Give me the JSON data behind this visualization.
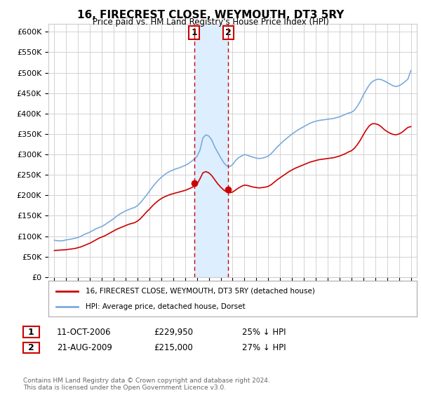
{
  "title": "16, FIRECREST CLOSE, WEYMOUTH, DT3 5RY",
  "subtitle": "Price paid vs. HM Land Registry's House Price Index (HPI)",
  "ylabel_ticks": [
    "£0",
    "£50K",
    "£100K",
    "£150K",
    "£200K",
    "£250K",
    "£300K",
    "£350K",
    "£400K",
    "£450K",
    "£500K",
    "£550K",
    "£600K"
  ],
  "ytick_values": [
    0,
    50000,
    100000,
    150000,
    200000,
    250000,
    300000,
    350000,
    400000,
    450000,
    500000,
    550000,
    600000
  ],
  "ylim": [
    0,
    620000
  ],
  "sale1": {
    "date_num": 2006.78,
    "price": 229950,
    "label": "1",
    "date_str": "11-OCT-2006",
    "pct": "25% ↓ HPI"
  },
  "sale2": {
    "date_num": 2009.64,
    "price": 215000,
    "label": "2",
    "date_str": "21-AUG-2009",
    "pct": "27% ↓ HPI"
  },
  "xlim_start": 1994.5,
  "xlim_end": 2025.5,
  "legend_house": "16, FIRECREST CLOSE, WEYMOUTH, DT3 5RY (detached house)",
  "legend_hpi": "HPI: Average price, detached house, Dorset",
  "footer": "Contains HM Land Registry data © Crown copyright and database right 2024.\nThis data is licensed under the Open Government Licence v3.0.",
  "red_color": "#cc0000",
  "blue_color": "#7aabdc",
  "shade_color": "#ddeeff",
  "background_color": "#ffffff",
  "grid_color": "#cccccc",
  "years_hpi": [
    1995,
    1995.25,
    1995.5,
    1995.75,
    1996,
    1996.25,
    1996.5,
    1996.75,
    1997,
    1997.25,
    1997.5,
    1997.75,
    1998,
    1998.25,
    1998.5,
    1998.75,
    1999,
    1999.25,
    1999.5,
    1999.75,
    2000,
    2000.25,
    2000.5,
    2000.75,
    2001,
    2001.25,
    2001.5,
    2001.75,
    2002,
    2002.25,
    2002.5,
    2002.75,
    2003,
    2003.25,
    2003.5,
    2003.75,
    2004,
    2004.25,
    2004.5,
    2004.75,
    2005,
    2005.25,
    2005.5,
    2005.75,
    2006,
    2006.25,
    2006.5,
    2006.75,
    2007,
    2007.25,
    2007.5,
    2007.75,
    2008,
    2008.25,
    2008.5,
    2008.75,
    2009,
    2009.25,
    2009.5,
    2009.75,
    2010,
    2010.25,
    2010.5,
    2010.75,
    2011,
    2011.25,
    2011.5,
    2011.75,
    2012,
    2012.25,
    2012.5,
    2012.75,
    2013,
    2013.25,
    2013.5,
    2013.75,
    2014,
    2014.25,
    2014.5,
    2014.75,
    2015,
    2015.25,
    2015.5,
    2015.75,
    2016,
    2016.25,
    2016.5,
    2016.75,
    2017,
    2017.25,
    2017.5,
    2017.75,
    2018,
    2018.25,
    2018.5,
    2018.75,
    2019,
    2019.25,
    2019.5,
    2019.75,
    2020,
    2020.25,
    2020.5,
    2020.75,
    2021,
    2021.25,
    2021.5,
    2021.75,
    2022,
    2022.25,
    2022.5,
    2022.75,
    2023,
    2023.25,
    2023.5,
    2023.75,
    2024,
    2024.25,
    2024.5,
    2024.75,
    2025
  ],
  "hpi_values": [
    90000,
    89000,
    88500,
    89000,
    91000,
    92000,
    93500,
    95000,
    97000,
    100000,
    104000,
    107000,
    110000,
    114000,
    118000,
    121000,
    124000,
    128000,
    133000,
    138000,
    143000,
    149000,
    154000,
    158000,
    162000,
    165000,
    168000,
    170000,
    175000,
    182000,
    191000,
    200000,
    210000,
    220000,
    229000,
    237000,
    244000,
    250000,
    255000,
    259000,
    262000,
    265000,
    267000,
    270000,
    273000,
    277000,
    282000,
    288000,
    295000,
    310000,
    340000,
    348000,
    345000,
    335000,
    318000,
    305000,
    292000,
    280000,
    272000,
    270000,
    275000,
    285000,
    292000,
    296000,
    300000,
    298000,
    295000,
    293000,
    291000,
    290000,
    291000,
    293000,
    296000,
    302000,
    310000,
    318000,
    325000,
    332000,
    338000,
    344000,
    350000,
    355000,
    360000,
    364000,
    368000,
    372000,
    376000,
    379000,
    381000,
    383000,
    384000,
    385000,
    386000,
    387000,
    388000,
    390000,
    392000,
    395000,
    398000,
    401000,
    403000,
    408000,
    418000,
    430000,
    445000,
    458000,
    470000,
    478000,
    482000,
    484000,
    483000,
    480000,
    476000,
    472000,
    468000,
    466000,
    468000,
    472000,
    478000,
    484000,
    505000
  ],
  "red_values": [
    65000,
    65500,
    66000,
    66500,
    67000,
    68000,
    69000,
    70000,
    72000,
    74000,
    77000,
    80000,
    83000,
    87000,
    91000,
    95000,
    98000,
    101000,
    105000,
    109000,
    113000,
    117000,
    120000,
    123000,
    126000,
    129000,
    131000,
    133000,
    137000,
    143000,
    151000,
    159000,
    166000,
    174000,
    181000,
    187000,
    192000,
    196000,
    199000,
    202000,
    204000,
    206000,
    208000,
    210000,
    212000,
    215000,
    218000,
    222000,
    227000,
    240000,
    255000,
    258000,
    255000,
    248000,
    238000,
    228000,
    220000,
    213000,
    208000,
    206000,
    208000,
    213000,
    218000,
    222000,
    225000,
    224000,
    222000,
    220000,
    219000,
    218000,
    219000,
    220000,
    222000,
    226000,
    232000,
    238000,
    243000,
    248000,
    253000,
    258000,
    262000,
    266000,
    269000,
    272000,
    275000,
    278000,
    281000,
    283000,
    285000,
    287000,
    288000,
    289000,
    290000,
    291000,
    292000,
    294000,
    296000,
    299000,
    302000,
    306000,
    309000,
    315000,
    324000,
    335000,
    348000,
    360000,
    370000,
    375000,
    375000,
    373000,
    368000,
    361000,
    356000,
    352000,
    349000,
    348000,
    350000,
    354000,
    360000,
    366000,
    368000
  ]
}
